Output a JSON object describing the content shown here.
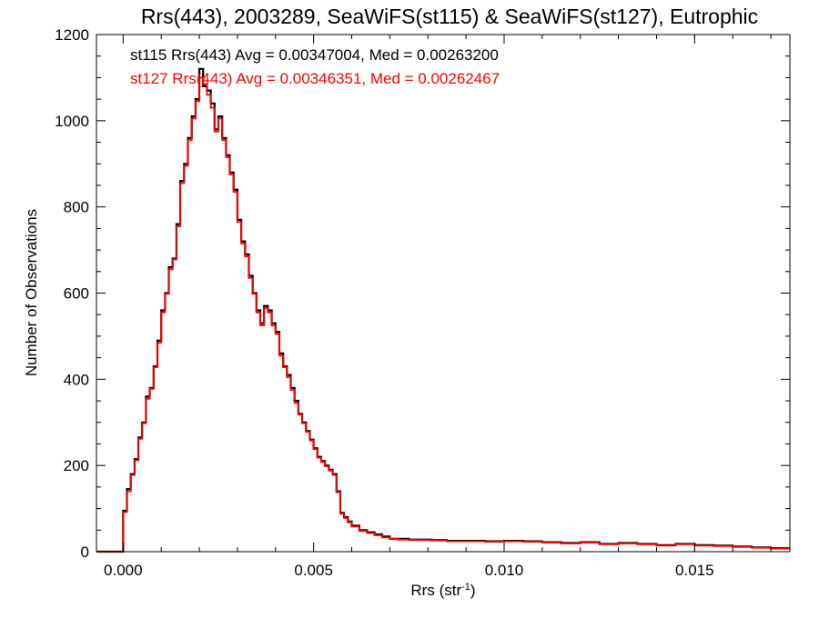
{
  "chart_data": {
    "type": "line",
    "title": "Rrs(443), 2003289, SeaWiFS(st115) & SeaWiFS(st127), Eutrophic",
    "xlabel": "Rrs (str",
    "xlabel_sup": "-1",
    "xlabel_suffix": ")",
    "ylabel": "Number of Observations",
    "xlim": [
      -0.0007,
      0.0175
    ],
    "ylim": [
      0,
      1200
    ],
    "x_ticks": [
      0.0,
      0.005,
      0.01,
      0.015
    ],
    "x_tick_labels": [
      "0.000",
      "0.005",
      "0.010",
      "0.015"
    ],
    "y_ticks": [
      0,
      200,
      400,
      600,
      800,
      1000,
      1200
    ],
    "y_tick_labels": [
      "0",
      "200",
      "400",
      "600",
      "800",
      "1000",
      "1200"
    ],
    "grid": false,
    "legend_placement": "top-left",
    "annotations": [
      {
        "text": "st115 Rrs(443) Avg = 0.00347004, Med = 0.00263200",
        "color": "#000000"
      },
      {
        "text": "st127 Rrs(443) Avg = 0.00346351, Med = 0.00262467",
        "color": "#ff0000"
      }
    ],
    "series": [
      {
        "color": "#000000",
        "step": "hist",
        "x": [
          -0.0007,
          -0.0001,
          0.0,
          0.0001,
          0.0002,
          0.0003,
          0.0004,
          0.0005,
          0.0006,
          0.0007,
          0.0008,
          0.0009,
          0.001,
          0.0011,
          0.0012,
          0.0013,
          0.0014,
          0.0015,
          0.0016,
          0.0017,
          0.0018,
          0.0019,
          0.002,
          0.0021,
          0.0022,
          0.0023,
          0.0024,
          0.0025,
          0.0026,
          0.0027,
          0.0028,
          0.0029,
          0.003,
          0.0031,
          0.0032,
          0.0033,
          0.0034,
          0.0035,
          0.0036,
          0.0037,
          0.0038,
          0.0039,
          0.004,
          0.0041,
          0.0042,
          0.0043,
          0.0044,
          0.0045,
          0.0046,
          0.0047,
          0.0048,
          0.0049,
          0.005,
          0.0051,
          0.0052,
          0.0053,
          0.0054,
          0.0055,
          0.0056,
          0.0057,
          0.0058,
          0.0059,
          0.006,
          0.0062,
          0.0064,
          0.0066,
          0.0068,
          0.007,
          0.0072,
          0.0075,
          0.0078,
          0.0081,
          0.0085,
          0.009,
          0.0095,
          0.01,
          0.0105,
          0.011,
          0.0115,
          0.012,
          0.0125,
          0.013,
          0.0135,
          0.014,
          0.0145,
          0.015,
          0.0155,
          0.016,
          0.0165,
          0.017
        ],
        "y": [
          0,
          0,
          95,
          145,
          180,
          215,
          265,
          300,
          360,
          380,
          430,
          490,
          560,
          600,
          660,
          680,
          760,
          860,
          900,
          960,
          1010,
          1050,
          1120,
          1080,
          1070,
          1040,
          980,
          1010,
          960,
          920,
          880,
          840,
          770,
          720,
          690,
          640,
          600,
          560,
          530,
          570,
          560,
          530,
          510,
          460,
          430,
          410,
          380,
          350,
          320,
          300,
          280,
          260,
          240,
          220,
          210,
          200,
          190,
          180,
          140,
          90,
          80,
          70,
          60,
          50,
          45,
          40,
          35,
          30,
          30,
          28,
          28,
          27,
          25,
          25,
          24,
          25,
          24,
          22,
          20,
          22,
          18,
          20,
          18,
          15,
          18,
          15,
          14,
          12,
          10,
          8
        ]
      },
      {
        "color": "#ff0000",
        "step": "hist",
        "x": [
          -0.0007,
          -0.0001,
          0.0,
          0.0001,
          0.0002,
          0.0003,
          0.0004,
          0.0005,
          0.0006,
          0.0007,
          0.0008,
          0.0009,
          0.001,
          0.0011,
          0.0012,
          0.0013,
          0.0014,
          0.0015,
          0.0016,
          0.0017,
          0.0018,
          0.0019,
          0.002,
          0.0021,
          0.0022,
          0.0023,
          0.0024,
          0.0025,
          0.0026,
          0.0027,
          0.0028,
          0.0029,
          0.003,
          0.0031,
          0.0032,
          0.0033,
          0.0034,
          0.0035,
          0.0036,
          0.0037,
          0.0038,
          0.0039,
          0.004,
          0.0041,
          0.0042,
          0.0043,
          0.0044,
          0.0045,
          0.0046,
          0.0047,
          0.0048,
          0.0049,
          0.005,
          0.0051,
          0.0052,
          0.0053,
          0.0054,
          0.0055,
          0.0056,
          0.0057,
          0.0058,
          0.0059,
          0.006,
          0.0062,
          0.0064,
          0.0066,
          0.0068,
          0.007,
          0.0072,
          0.0075,
          0.0078,
          0.0081,
          0.0085,
          0.009,
          0.0095,
          0.01,
          0.0105,
          0.011,
          0.0115,
          0.012,
          0.0125,
          0.013,
          0.0135,
          0.014,
          0.0145,
          0.015,
          0.0155,
          0.016,
          0.0165,
          0.017
        ],
        "y": [
          0,
          0,
          92,
          140,
          178,
          212,
          262,
          298,
          355,
          378,
          428,
          485,
          555,
          598,
          655,
          678,
          755,
          855,
          895,
          955,
          1005,
          1045,
          1100,
          1085,
          1060,
          1030,
          975,
          1005,
          955,
          915,
          875,
          835,
          765,
          715,
          685,
          635,
          598,
          555,
          525,
          565,
          555,
          525,
          505,
          455,
          428,
          405,
          375,
          345,
          318,
          298,
          278,
          258,
          238,
          218,
          208,
          198,
          188,
          178,
          138,
          88,
          78,
          68,
          58,
          48,
          43,
          38,
          33,
          30,
          28,
          27,
          27,
          26,
          24,
          24,
          23,
          24,
          23,
          21,
          19,
          21,
          17,
          19,
          17,
          14,
          17,
          14,
          13,
          11,
          9,
          7
        ]
      }
    ]
  }
}
